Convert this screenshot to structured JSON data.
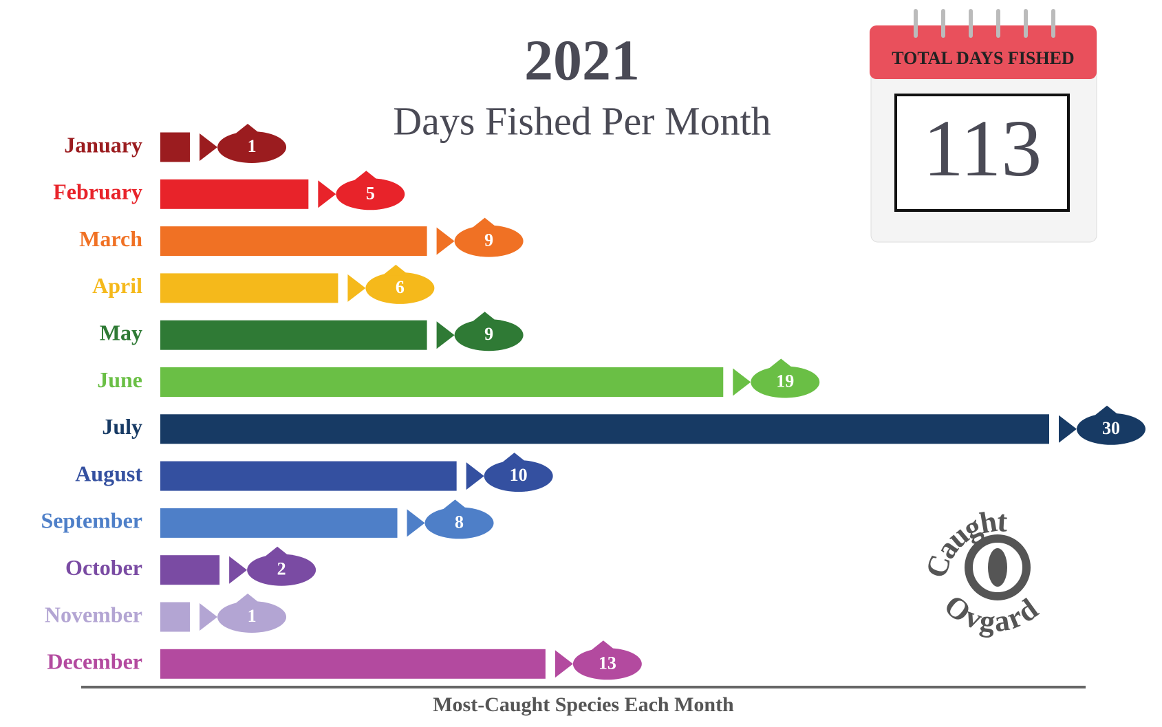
{
  "chart_data": {
    "type": "bar",
    "title": "2021",
    "subtitle": "Days Fished Per Month",
    "categories": [
      "January",
      "February",
      "March",
      "April",
      "May",
      "June",
      "July",
      "August",
      "September",
      "October",
      "November",
      "December"
    ],
    "values": [
      1,
      5,
      9,
      6,
      9,
      19,
      30,
      10,
      8,
      2,
      1,
      13
    ],
    "colors": [
      "#9b1c1f",
      "#e8232a",
      "#f07124",
      "#f5b91b",
      "#2f7a35",
      "#6abf45",
      "#173a64",
      "#3450a0",
      "#4e7fc8",
      "#7a4ba3",
      "#b3a5d3",
      "#b34a9f"
    ],
    "total_label": "TOTAL DAYS FISHED",
    "total": 113,
    "footer": "Most-Caught Species Each Month",
    "logo": [
      "Caught",
      "Ovgard"
    ]
  }
}
